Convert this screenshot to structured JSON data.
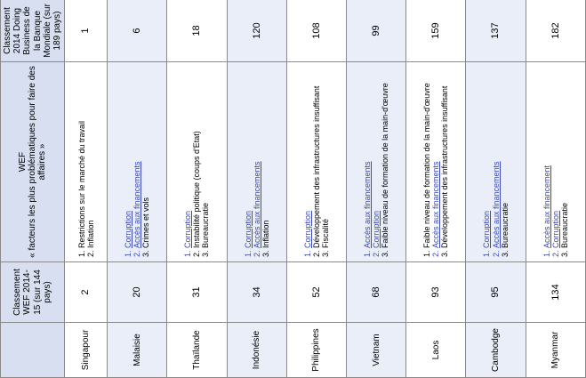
{
  "headers": {
    "country": "",
    "wef_rank": "Classement WEF 2014-15 (sur 144 pays)",
    "wef_title": "WEF",
    "wef_factors": "« facteurs les plus problématiques pour faire des affaires »",
    "doing_business": "Classement 2014 Doing Business de la Banque Mondiale (sur 189 pays)"
  },
  "rows": [
    {
      "country": "Singapour",
      "wef": "2",
      "db": "1",
      "factors": [
        {
          "text": "Restrictions sur le marché du travail",
          "link": false
        },
        {
          "text": "Inflation",
          "link": false
        }
      ]
    },
    {
      "country": "Malaisie",
      "wef": "20",
      "db": "6",
      "factors": [
        {
          "text": "Corruption",
          "link": true
        },
        {
          "text": "Accès aux financements",
          "link": true
        },
        {
          "text": "Crimes et vols",
          "link": false
        }
      ]
    },
    {
      "country": "Thaïlande",
      "wef": "31",
      "db": "18",
      "factors": [
        {
          "text": "Corruption",
          "link": true
        },
        {
          "text": "Instabilité politique (coups d'Etat)",
          "link": false
        },
        {
          "text": "Bureaucratie",
          "link": false
        }
      ]
    },
    {
      "country": "Indonésie",
      "wef": "34",
      "db": "120",
      "factors": [
        {
          "text": "Corruption",
          "link": true
        },
        {
          "text": "Accès aux financements",
          "link": true
        },
        {
          "text": "Inflation",
          "link": false
        }
      ]
    },
    {
      "country": "Philippines",
      "wef": "52",
      "db": "108",
      "factors": [
        {
          "text": "Corruption",
          "link": true
        },
        {
          "text": "Développement des infrastructures insuffisant",
          "link": false
        },
        {
          "text": "Fiscalité",
          "link": false
        }
      ]
    },
    {
      "country": "Vietnam",
      "wef": "68",
      "db": "99",
      "factors": [
        {
          "text": "Accès aux financements",
          "link": true
        },
        {
          "text": "Corruption",
          "link": true
        },
        {
          "text": "Faible niveau de formation de la main-d'œuvre",
          "link": false
        }
      ]
    },
    {
      "country": "Laos",
      "wef": "93",
      "db": "159",
      "factors": [
        {
          "text": "Faible niveau de formation de la main-d'œuvre",
          "link": false
        },
        {
          "text": "Accès aux financements",
          "link": true
        },
        {
          "text": "Développement des infrastructures insuffisant",
          "link": false
        }
      ]
    },
    {
      "country": "Cambodge",
      "wef": "95",
      "db": "137",
      "factors": [
        {
          "text": "Corruption",
          "link": true
        },
        {
          "text": "Accès aux financements",
          "link": true
        },
        {
          "text": "Bureaucratie",
          "link": false
        }
      ]
    },
    {
      "country": "Myanmar",
      "wef": "134",
      "db": "182",
      "factors": [
        {
          "text": "Accès aux financement",
          "link": true
        },
        {
          "text": "Corruption",
          "link": true
        },
        {
          "text": "Bureaucratie",
          "link": false
        }
      ]
    }
  ]
}
